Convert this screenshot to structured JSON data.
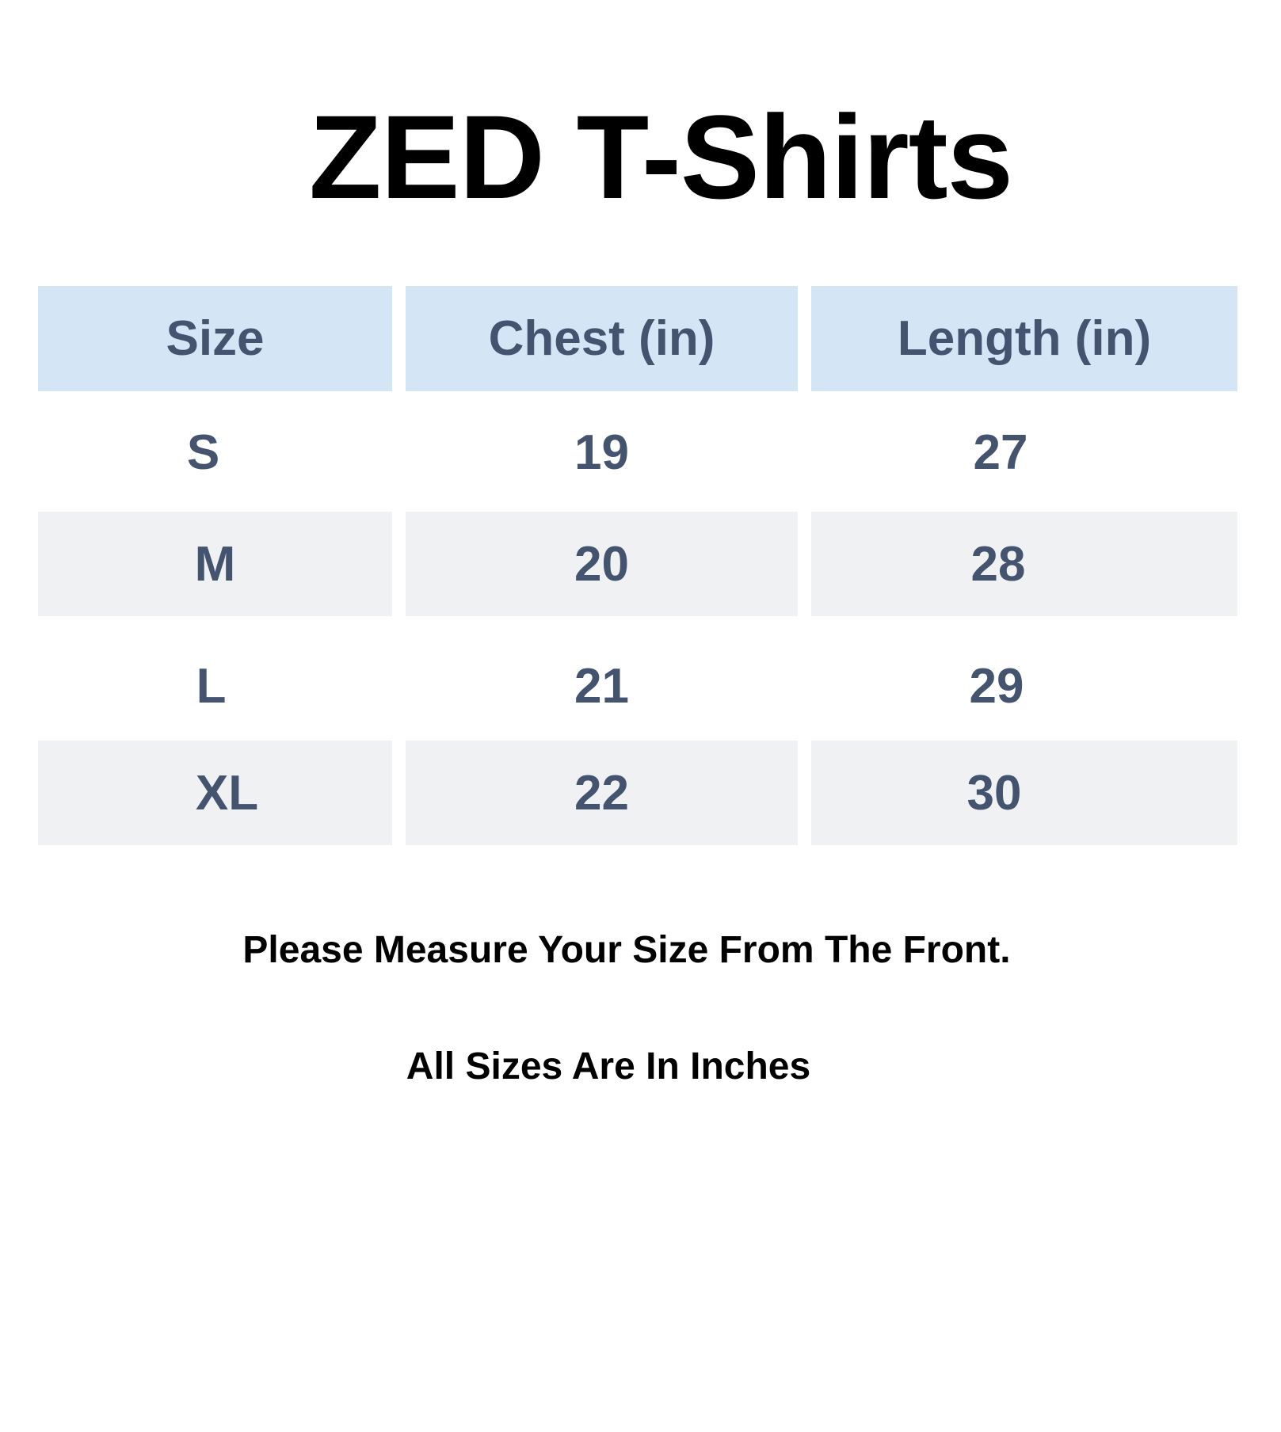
{
  "title": "ZED T-Shirts",
  "table": {
    "headers": [
      "Size",
      "Chest (in)",
      "Length (in)"
    ],
    "rows": [
      [
        "S",
        "19",
        "27"
      ],
      [
        "M",
        "20",
        "28"
      ],
      [
        "L",
        "21",
        "29"
      ],
      [
        "XL",
        "22",
        "30"
      ]
    ]
  },
  "notes": {
    "measure": "Please Measure Your Size From The Front.",
    "units": "All Sizes Are In Inches"
  },
  "colors": {
    "header_bg": "#d4e6f5",
    "alt_row_bg": "#eff1f3",
    "table_text": "#44546f"
  }
}
